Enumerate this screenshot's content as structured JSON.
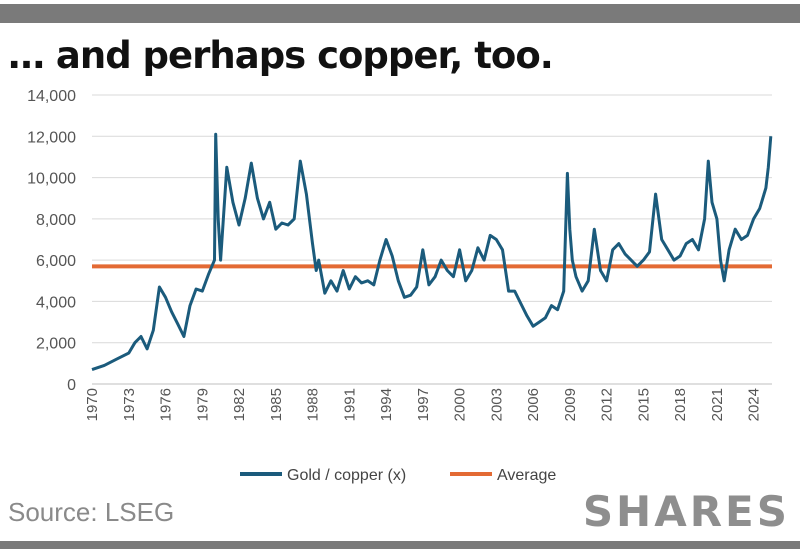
{
  "title": "… and perhaps copper, too.",
  "source": "Source: LSEG",
  "brand": "SHARES",
  "colors": {
    "series": "#1b5b7c",
    "average": "#e36a34",
    "bars": "#7a7a7a"
  },
  "chart_data": {
    "type": "line",
    "title": "… and perhaps copper, too.",
    "xlabel": "",
    "ylabel": "",
    "xlim": [
      1970,
      2025.5
    ],
    "ylim": [
      0,
      14000
    ],
    "y_ticks": [
      0,
      2000,
      4000,
      6000,
      8000,
      10000,
      12000,
      14000
    ],
    "y_tick_labels": [
      "0",
      "2,000",
      "4,000",
      "6,000",
      "8,000",
      "10,000",
      "12,000",
      "14,000"
    ],
    "x_ticks": [
      1970,
      1973,
      1976,
      1979,
      1982,
      1985,
      1988,
      1991,
      1994,
      1997,
      2000,
      2003,
      2006,
      2009,
      2012,
      2015,
      2018,
      2021,
      2024
    ],
    "x_tick_labels": [
      "1970",
      "1973",
      "1976",
      "1979",
      "1982",
      "1985",
      "1988",
      "1991",
      "1994",
      "1997",
      "2000",
      "2003",
      "2006",
      "2009",
      "2012",
      "2015",
      "2018",
      "2021",
      "2024"
    ],
    "grid": "horizontal",
    "legend": "bottom",
    "series": [
      {
        "name": "Gold / copper (x)",
        "x": [
          1970,
          1971,
          1972,
          1973,
          1973.5,
          1974,
          1974.5,
          1975,
          1975.5,
          1976,
          1976.5,
          1977,
          1977.5,
          1978,
          1978.5,
          1979,
          1979.5,
          1980,
          1980.1,
          1980.3,
          1980.5,
          1981,
          1981.5,
          1982,
          1982.5,
          1983,
          1983.5,
          1984,
          1984.5,
          1985,
          1985.5,
          1986,
          1986.5,
          1987,
          1987.5,
          1988,
          1988.3,
          1988.5,
          1989,
          1989.5,
          1990,
          1990.5,
          1991,
          1991.5,
          1992,
          1992.5,
          1993,
          1993.5,
          1994,
          1994.5,
          1995,
          1995.5,
          1996,
          1996.5,
          1997,
          1997.5,
          1998,
          1998.5,
          1999,
          1999.5,
          2000,
          2000.5,
          2001,
          2001.5,
          2002,
          2002.5,
          2003,
          2003.5,
          2004,
          2004.5,
          2005,
          2005.5,
          2006,
          2006.5,
          2007,
          2007.5,
          2008,
          2008.5,
          2008.8,
          2009,
          2009.2,
          2009.5,
          2010,
          2010.5,
          2011,
          2011.5,
          2012,
          2012.5,
          2013,
          2013.5,
          2014,
          2014.5,
          2015,
          2015.5,
          2016,
          2016.5,
          2017,
          2017.5,
          2018,
          2018.5,
          2019,
          2019.5,
          2020,
          2020.3,
          2020.6,
          2021,
          2021.3,
          2021.6,
          2022,
          2022.5,
          2023,
          2023.5,
          2024,
          2024.5,
          2025,
          2025.2,
          2025.4
        ],
        "values": [
          700,
          900,
          1200,
          1500,
          2000,
          2300,
          1700,
          2600,
          4700,
          4200,
          3500,
          2900,
          2300,
          3800,
          4600,
          4500,
          5300,
          6000,
          12100,
          8000,
          6000,
          10500,
          8800,
          7700,
          9000,
          10700,
          9000,
          8000,
          8800,
          7500,
          7800,
          7700,
          8000,
          10800,
          9200,
          6800,
          5500,
          6000,
          4400,
          5000,
          4500,
          5500,
          4600,
          5200,
          4900,
          5000,
          4800,
          6000,
          7000,
          6200,
          5000,
          4200,
          4300,
          4700,
          6500,
          4800,
          5200,
          6000,
          5500,
          5200,
          6500,
          5000,
          5500,
          6600,
          6000,
          7200,
          7000,
          6500,
          4500,
          4500,
          3900,
          3300,
          2800,
          3000,
          3200,
          3800,
          3600,
          4500,
          10200,
          7500,
          6000,
          5200,
          4500,
          5000,
          7500,
          5500,
          5000,
          6500,
          6800,
          6300,
          6000,
          5700,
          6000,
          6400,
          9200,
          7000,
          6500,
          6000,
          6200,
          6800,
          7000,
          6500,
          8000,
          10800,
          8800,
          8000,
          6000,
          5000,
          6500,
          7500,
          7000,
          7200,
          8000,
          8500,
          9500,
          10500,
          12000
        ]
      },
      {
        "name": "Average",
        "type": "hline",
        "value": 5700
      }
    ]
  }
}
